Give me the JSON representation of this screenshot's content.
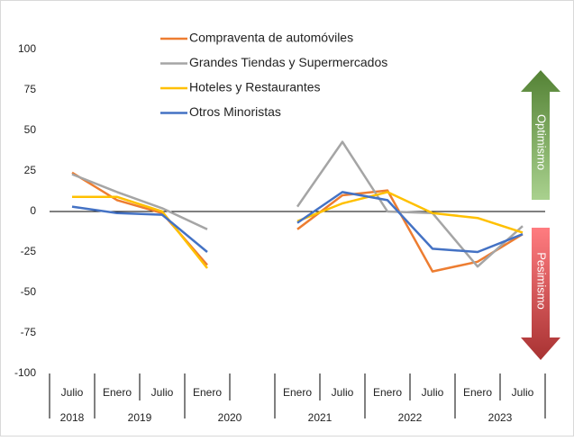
{
  "chart_data": {
    "type": "line",
    "categories": [
      "Julio",
      "Enero",
      "Julio",
      "Enero",
      null,
      "Enero",
      "Julio",
      "Enero",
      "Julio",
      "Enero",
      "Julio"
    ],
    "groups": [
      {
        "label": "2018",
        "count": 1
      },
      {
        "label": "2019",
        "count": 2
      },
      {
        "label": "2020",
        "count": 2
      },
      {
        "label": "2021",
        "count": 2
      },
      {
        "label": "2022",
        "count": 2
      },
      {
        "label": "2023",
        "count": 2
      }
    ],
    "series": [
      {
        "name": "Compraventa de automóviles",
        "color": "#ed7d31",
        "values": [
          24,
          7,
          -1,
          -33,
          null,
          -11,
          10,
          13,
          -37,
          -31,
          -14
        ]
      },
      {
        "name": "Grandes Tiendas y Supermercados",
        "color": "#a5a5a5",
        "values": [
          23,
          12,
          2,
          -11,
          null,
          3,
          43,
          0,
          -1,
          -34,
          -9
        ]
      },
      {
        "name": "Hoteles y Restaurantes",
        "color": "#ffc000",
        "values": [
          9,
          9,
          0,
          -35,
          null,
          -6,
          5,
          12,
          -1,
          -4,
          -13
        ]
      },
      {
        "name": "Otros Minoristas",
        "color": "#4472c4",
        "values": [
          3,
          -1,
          -2,
          -25,
          null,
          -7,
          12,
          7,
          -23,
          -25,
          -14
        ]
      }
    ],
    "ylim": [
      -100,
      100
    ],
    "yticks": [
      -100,
      -75,
      -50,
      -25,
      0,
      25,
      50,
      75,
      100
    ],
    "grid": false,
    "legend": "top",
    "annotations": [
      {
        "text": "Optimismo",
        "color": "#548235"
      },
      {
        "text": "Pesimismo",
        "color": "#c00000"
      }
    ]
  }
}
